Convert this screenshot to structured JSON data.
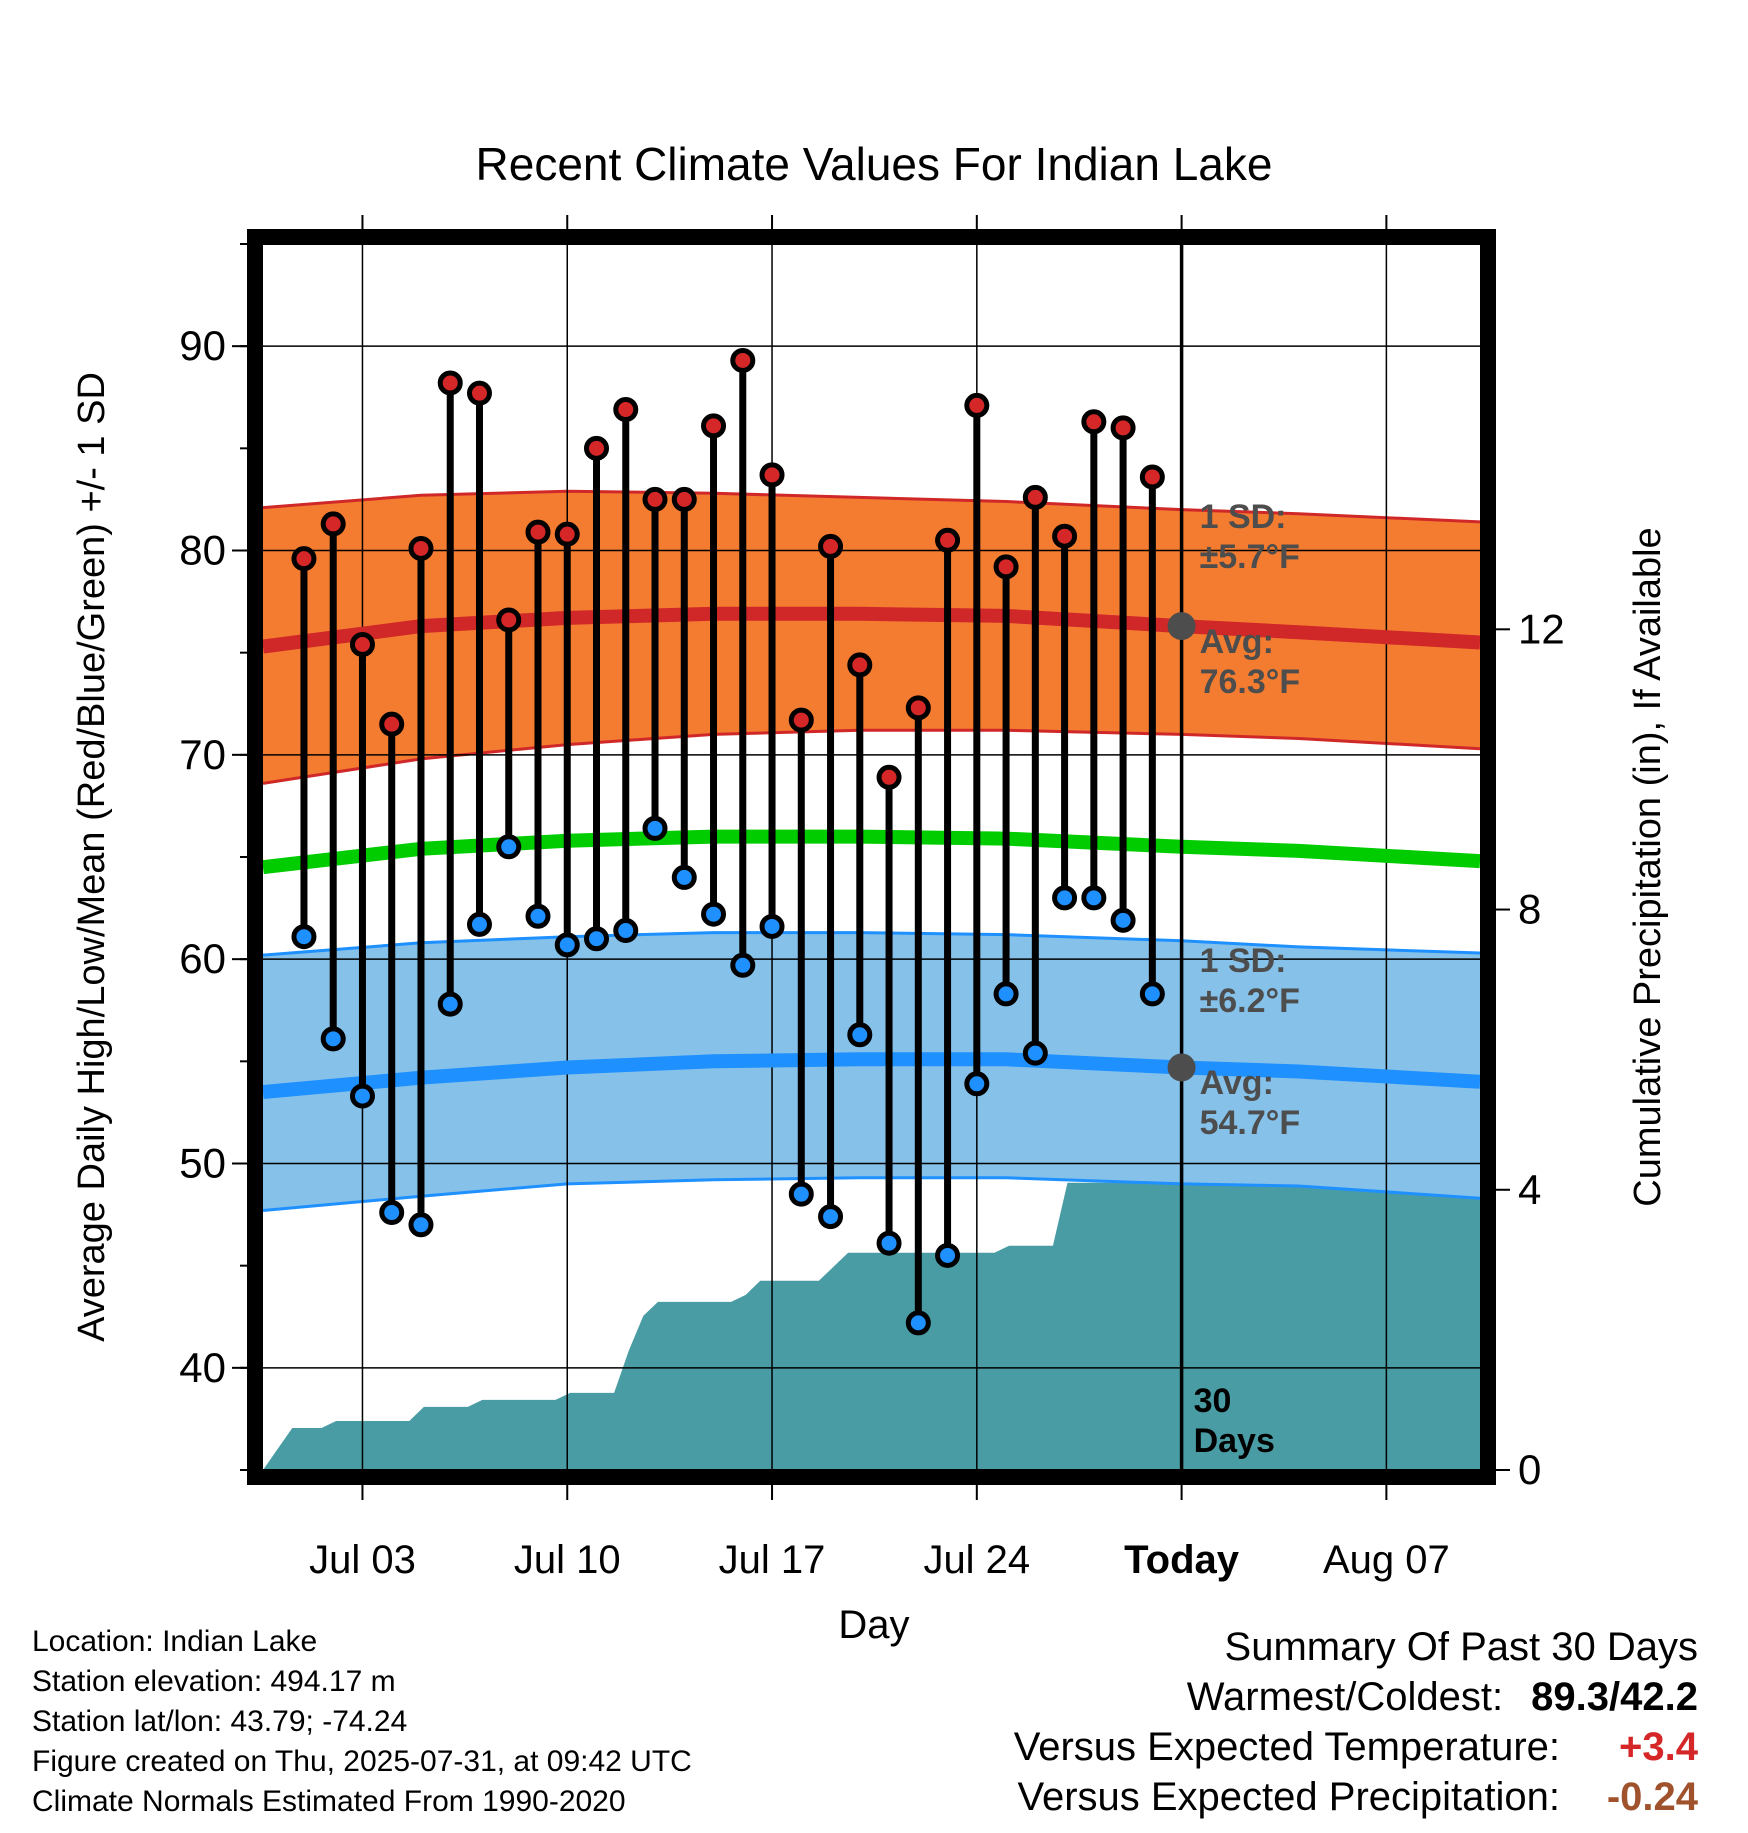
{
  "colors": {
    "high": "#d62728",
    "low": "#1e90ff",
    "high_band": "#f47c30",
    "high_mean_line": "#d02828",
    "low_band": "#85c1e9",
    "low_mean_line": "#1e90ff",
    "mean_line": "#00cc00",
    "precip": "#4a9ca4",
    "avg_marker": "#4d4d4d",
    "temp_positive": "#d62728",
    "precip_negative": "#a0522d"
  },
  "chart_data": {
    "type": "line",
    "title": "Recent Climate Values For Indian Lake",
    "xlabel": "Day",
    "ylabel": "Average Daily High/Low/Mean (Red/Blue/Green) +/- 1 SD",
    "y2label": "Cumulative Precipitation (in), If Available",
    "ylim": [
      35,
      95
    ],
    "y2lim": [
      0,
      17.5
    ],
    "y_ticks": [
      40,
      50,
      60,
      70,
      80,
      90
    ],
    "y2_ticks": [
      0,
      4,
      8,
      12
    ],
    "x_range_day_of_month_july": [
      -0.4,
      41.2
    ],
    "x_tick_labels": [
      "Jul 03",
      "Jul 10",
      "Jul 17",
      "Jul 24",
      "Today",
      "Aug 07"
    ],
    "x_tick_days": [
      3,
      10,
      17,
      24,
      31,
      38
    ],
    "x_tick_bold": [
      false,
      false,
      false,
      false,
      true,
      false
    ],
    "today_day": 31,
    "today_label_lines": [
      "30",
      "Days"
    ],
    "days": [
      2,
      3,
      4,
      5,
      6,
      7,
      8,
      9,
      10,
      11,
      12,
      13,
      14,
      15,
      16,
      17,
      18,
      19,
      20,
      21,
      22,
      23,
      24,
      25,
      26,
      27,
      28,
      29,
      30,
      31
    ],
    "observed": {
      "days": [
        1,
        2,
        3,
        4,
        5,
        6,
        7,
        8,
        9,
        10,
        11,
        12,
        13,
        14,
        15,
        16,
        17,
        18,
        19,
        20,
        21,
        22,
        23,
        24,
        25,
        26,
        27,
        28,
        29,
        30
      ],
      "high": [
        79.6,
        81.3,
        75.4,
        71.5,
        80.1,
        88.2,
        87.7,
        76.6,
        80.9,
        80.8,
        85.0,
        86.9,
        82.5,
        82.5,
        86.1,
        89.3,
        83.7,
        71.7,
        80.2,
        74.4,
        68.9,
        72.3,
        80.5,
        87.1,
        79.2,
        82.6,
        80.7,
        86.3,
        86.0,
        83.6
      ],
      "low": [
        61.1,
        56.1,
        53.3,
        47.6,
        47.0,
        57.8,
        61.7,
        65.5,
        62.1,
        60.7,
        61.0,
        61.4,
        66.4,
        64.0,
        62.2,
        59.7,
        61.6,
        48.5,
        47.4,
        56.3,
        46.1,
        42.2,
        45.5,
        53.9,
        58.3,
        55.4,
        63.0,
        63.0,
        61.9,
        58.3
      ]
    },
    "normals": {
      "days": [
        -0.4,
        5,
        10,
        15,
        20,
        25,
        31,
        35,
        41.2
      ],
      "high_mean": [
        75.3,
        76.3,
        76.7,
        76.9,
        76.9,
        76.8,
        76.3,
        76.0,
        75.5
      ],
      "high_sd_upper": [
        82.1,
        82.7,
        82.9,
        82.8,
        82.6,
        82.4,
        82.0,
        81.8,
        81.4
      ],
      "high_sd_lower": [
        68.6,
        69.8,
        70.5,
        71.0,
        71.2,
        71.2,
        71.0,
        70.8,
        70.3
      ],
      "mean": [
        64.5,
        65.4,
        65.8,
        66.0,
        66.0,
        65.9,
        65.5,
        65.3,
        64.8
      ],
      "low_mean": [
        53.5,
        54.2,
        54.7,
        55.0,
        55.1,
        55.1,
        54.7,
        54.5,
        54.0
      ],
      "low_sd_upper": [
        60.2,
        60.8,
        61.1,
        61.3,
        61.3,
        61.2,
        60.9,
        60.6,
        60.3
      ],
      "low_sd_lower": [
        47.7,
        48.4,
        49.0,
        49.2,
        49.3,
        49.3,
        49.0,
        48.9,
        48.3
      ]
    },
    "precip_cumulative": {
      "days": [
        -0.4,
        0.1,
        0.6,
        1.6,
        2.1,
        4.6,
        5.1,
        6.6,
        7.1,
        9.6,
        10.1,
        11.6,
        12.1,
        12.6,
        13.1,
        13.6,
        14.1,
        15.6,
        16.1,
        16.6,
        17.1,
        18.6,
        19.1,
        19.6,
        20.1,
        24.6,
        25.1,
        26.6,
        27.1,
        30.6,
        31.1,
        41.2
      ],
      "values": [
        0.0,
        0.3,
        0.6,
        0.6,
        0.7,
        0.7,
        0.9,
        0.9,
        1.0,
        1.0,
        1.1,
        1.1,
        1.7,
        2.2,
        2.4,
        2.4,
        2.4,
        2.4,
        2.5,
        2.7,
        2.7,
        2.7,
        2.9,
        3.1,
        3.1,
        3.1,
        3.2,
        3.2,
        4.1,
        4.1,
        4.1,
        4.1
      ]
    },
    "annotations": {
      "high_sd_lines": [
        "1 SD:",
        "±5.7°F"
      ],
      "high_avg_lines": [
        "Avg:",
        "76.3°F"
      ],
      "low_sd_lines": [
        "1 SD:",
        "±6.2°F"
      ],
      "low_avg_lines": [
        "Avg:",
        "54.7°F"
      ],
      "high_avg_value": 76.3,
      "low_avg_value": 54.7
    }
  },
  "footer": {
    "location": "Location: Indian Lake",
    "elevation": "Station elevation: 494.17 m",
    "latlon": "Station lat/lon: 43.79; -74.24",
    "created": "Figure created on Thu, 2025-07-31, at 09:42 UTC",
    "normals": "Climate Normals Estimated From 1990-2020"
  },
  "summary": {
    "title": "Summary Of Past 30 Days",
    "warm_cold_label": "Warmest/Coldest:",
    "warmest": "89.3",
    "coldest": "42.2",
    "temp_label": "Versus Expected Temperature:",
    "temp_value": "+3.4",
    "precip_label": "Versus Expected Precipitation:",
    "precip_value": "-0.24"
  }
}
